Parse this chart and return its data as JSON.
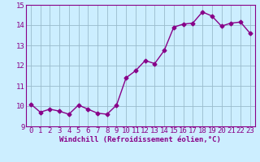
{
  "x": [
    0,
    1,
    2,
    3,
    4,
    5,
    6,
    7,
    8,
    9,
    10,
    11,
    12,
    13,
    14,
    15,
    16,
    17,
    18,
    19,
    20,
    21,
    22,
    23
  ],
  "y": [
    10.1,
    9.7,
    9.85,
    9.75,
    9.6,
    10.05,
    9.85,
    9.65,
    9.6,
    10.05,
    11.4,
    11.75,
    12.25,
    12.1,
    12.75,
    13.9,
    14.05,
    14.1,
    14.65,
    14.45,
    13.95,
    14.1,
    14.15,
    13.6
  ],
  "line_color": "#880088",
  "marker": "D",
  "marker_size": 2.5,
  "line_width": 1.0,
  "bg_color": "#cceeff",
  "grid_color": "#99bbcc",
  "xlabel": "Windchill (Refroidissement éolien,°C)",
  "xlabel_fontsize": 6.5,
  "tick_fontsize": 6.5,
  "ylim": [
    9,
    15
  ],
  "xlim": [
    -0.5,
    23.5
  ],
  "yticks": [
    9,
    10,
    11,
    12,
    13,
    14,
    15
  ],
  "xticks": [
    0,
    1,
    2,
    3,
    4,
    5,
    6,
    7,
    8,
    9,
    10,
    11,
    12,
    13,
    14,
    15,
    16,
    17,
    18,
    19,
    20,
    21,
    22,
    23
  ]
}
